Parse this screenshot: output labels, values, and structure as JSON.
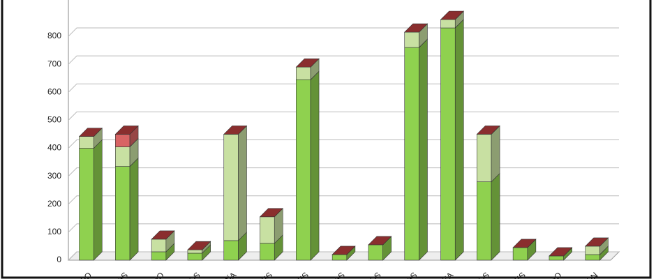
{
  "chart_data": {
    "type": "bar",
    "stacked": true,
    "grid": true,
    "categories": [
      "DO",
      "IAS",
      "MO",
      "IOS",
      "CÍA",
      "LES",
      "NES",
      "DAS",
      "IOS",
      "RAS",
      "EZA",
      "IOS",
      "TES",
      "MO",
      "IÓN"
    ],
    "series": [
      {
        "color": "#8fd14f",
        "values": [
          400,
          335,
          30,
          25,
          70,
          60,
          645,
          20,
          55,
          760,
          830,
          280,
          45,
          15,
          20
        ]
      },
      {
        "color": "#c8e0a2",
        "values": [
          42,
          70,
          45,
          12,
          380,
          95,
          45,
          0,
          0,
          55,
          30,
          170,
          0,
          0,
          30
        ]
      },
      {
        "color": "#d86464",
        "values": [
          0,
          45,
          0,
          0,
          0,
          0,
          0,
          0,
          0,
          0,
          0,
          0,
          0,
          0,
          0
        ]
      }
    ],
    "ylim": [
      0,
      850
    ],
    "yticks": [
      0,
      100,
      200,
      300,
      400,
      500,
      600,
      700,
      800
    ]
  }
}
